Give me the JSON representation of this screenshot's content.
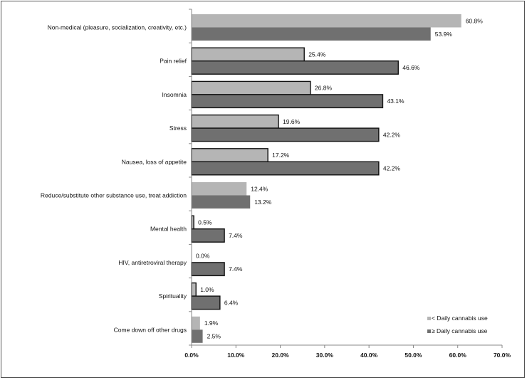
{
  "chart_data": {
    "type": "bar",
    "orientation": "horizontal",
    "categories": [
      "Non-medical (pleasure, socialization, creativity, etc.)",
      "Pain relief",
      "Insomnia",
      "Stress",
      "Nausea, loss of appetite",
      "Reduce/substitute other substance use, treat addiction",
      "Mental health",
      "HIV, antiretroviral therapy",
      "Spirituality",
      "Come down off other drugs"
    ],
    "series": [
      {
        "name": "< Daily cannabis use",
        "color": "#b5b5b5",
        "values": [
          60.8,
          25.4,
          26.8,
          19.6,
          17.2,
          12.4,
          0.5,
          0.0,
          1.0,
          1.9
        ],
        "value_labels": [
          "60.8%",
          "25.4%",
          "26.8%",
          "19.6%",
          "17.2%",
          "12.4%",
          "0.5%",
          "0.0%",
          "1.0%",
          "1.9%"
        ],
        "outlined": [
          false,
          true,
          true,
          true,
          true,
          false,
          true,
          false,
          true,
          false
        ]
      },
      {
        "name": "≥ Daily cannabis use",
        "color": "#707070",
        "values": [
          53.9,
          46.6,
          43.1,
          42.2,
          42.2,
          13.2,
          7.4,
          7.4,
          6.4,
          2.5
        ],
        "value_labels": [
          "53.9%",
          "46.6%",
          "43.1%",
          "42.2%",
          "42.2%",
          "13.2%",
          "7.4%",
          "7.4%",
          "6.4%",
          "2.5%"
        ],
        "outlined": [
          false,
          true,
          true,
          true,
          true,
          false,
          true,
          true,
          true,
          false
        ]
      }
    ],
    "xlim": [
      0,
      70
    ],
    "x_ticks": [
      "0.0%",
      "10.0%",
      "20.0%",
      "30.0%",
      "40.0%",
      "50.0%",
      "60.0%",
      "70.0%"
    ],
    "title": "",
    "xlabel": "",
    "ylabel": "",
    "grid": false,
    "legend_position": "bottom-right"
  }
}
